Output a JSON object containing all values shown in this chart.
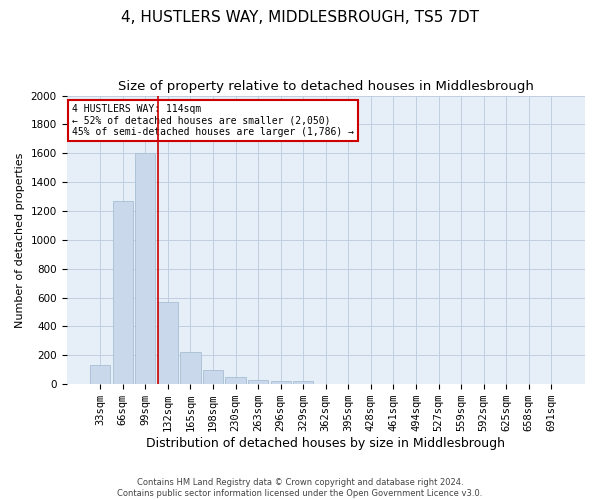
{
  "title": "4, HUSTLERS WAY, MIDDLESBROUGH, TS5 7DT",
  "subtitle": "Size of property relative to detached houses in Middlesbrough",
  "xlabel": "Distribution of detached houses by size in Middlesbrough",
  "ylabel": "Number of detached properties",
  "footer_line1": "Contains HM Land Registry data © Crown copyright and database right 2024.",
  "footer_line2": "Contains public sector information licensed under the Open Government Licence v3.0.",
  "categories": [
    "33sqm",
    "66sqm",
    "99sqm",
    "132sqm",
    "165sqm",
    "198sqm",
    "230sqm",
    "263sqm",
    "296sqm",
    "329sqm",
    "362sqm",
    "395sqm",
    "428sqm",
    "461sqm",
    "494sqm",
    "527sqm",
    "559sqm",
    "592sqm",
    "625sqm",
    "658sqm",
    "691sqm"
  ],
  "values": [
    130,
    1270,
    1600,
    570,
    220,
    100,
    50,
    30,
    20,
    20,
    0,
    0,
    0,
    0,
    0,
    0,
    0,
    0,
    0,
    0,
    0
  ],
  "bar_color": "#c9d9eb",
  "bar_edge_color": "#a8bfd4",
  "vline_color": "#cc0000",
  "vline_x": 2.55,
  "annotation_text": "4 HUSTLERS WAY: 114sqm\n← 52% of detached houses are smaller (2,050)\n45% of semi-detached houses are larger (1,786) →",
  "annotation_box_color": "#ffffff",
  "annotation_box_edge": "#cc0000",
  "ylim": [
    0,
    2000
  ],
  "yticks": [
    0,
    200,
    400,
    600,
    800,
    1000,
    1200,
    1400,
    1600,
    1800,
    2000
  ],
  "background_color": "#ffffff",
  "grid_color": "#c0cfe0",
  "axes_bg_color": "#e6eef7",
  "title_fontsize": 11,
  "subtitle_fontsize": 9.5,
  "xlabel_fontsize": 9,
  "ylabel_fontsize": 8,
  "tick_fontsize": 7.5,
  "annotation_fontsize": 7,
  "footer_fontsize": 6
}
